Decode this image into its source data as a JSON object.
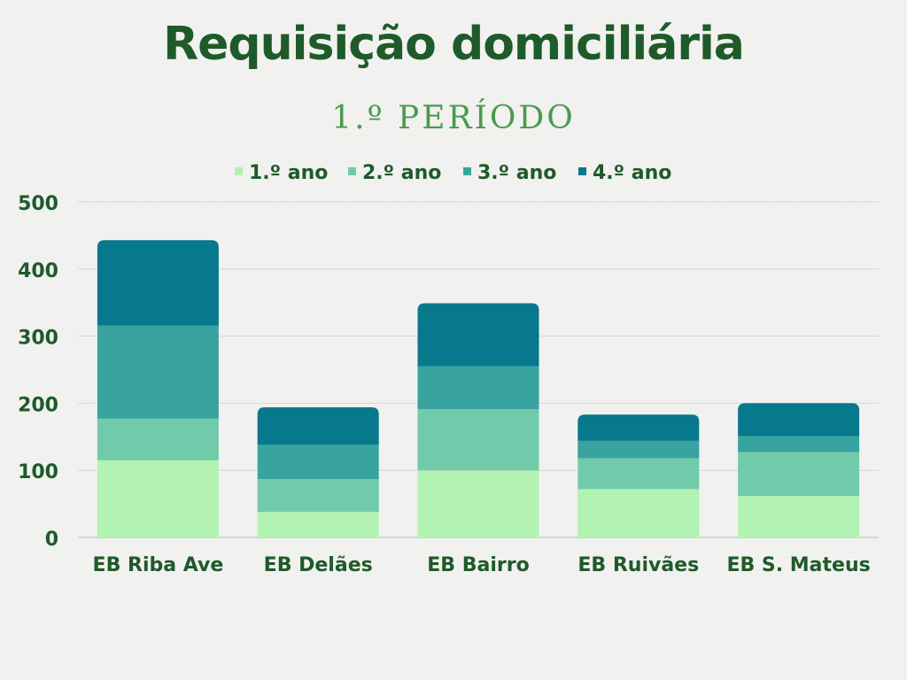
{
  "chart_data": {
    "type": "bar",
    "stacked": true,
    "title": "Requisição domiciliária",
    "subtitle": "1.º PERÍODO",
    "categories": [
      "EB Riba Ave",
      "EB Delães",
      "EB Bairro",
      "EB Ruivães",
      "EB S. Mateus"
    ],
    "series": [
      {
        "name": "1.º ano",
        "color": "#b2f2b3",
        "values": [
          115,
          38,
          100,
          72,
          62
        ]
      },
      {
        "name": "2.º ano",
        "color": "#71cbaa",
        "values": [
          62,
          49,
          91,
          46,
          65
        ]
      },
      {
        "name": "3.º ano",
        "color": "#38a39f",
        "values": [
          139,
          51,
          64,
          26,
          24
        ]
      },
      {
        "name": "4.º ano",
        "color": "#08788d",
        "values": [
          127,
          56,
          94,
          39,
          49
        ]
      }
    ],
    "ylim": [
      0,
      500
    ],
    "yticks": [
      0,
      100,
      200,
      300,
      400,
      500
    ],
    "grid": true,
    "legend_position": "top",
    "xlabel": "",
    "ylabel": ""
  },
  "colors": {
    "text": "#1f5a2a",
    "subtitle": "#4a9a4e",
    "grid": "#d6d6d4"
  }
}
